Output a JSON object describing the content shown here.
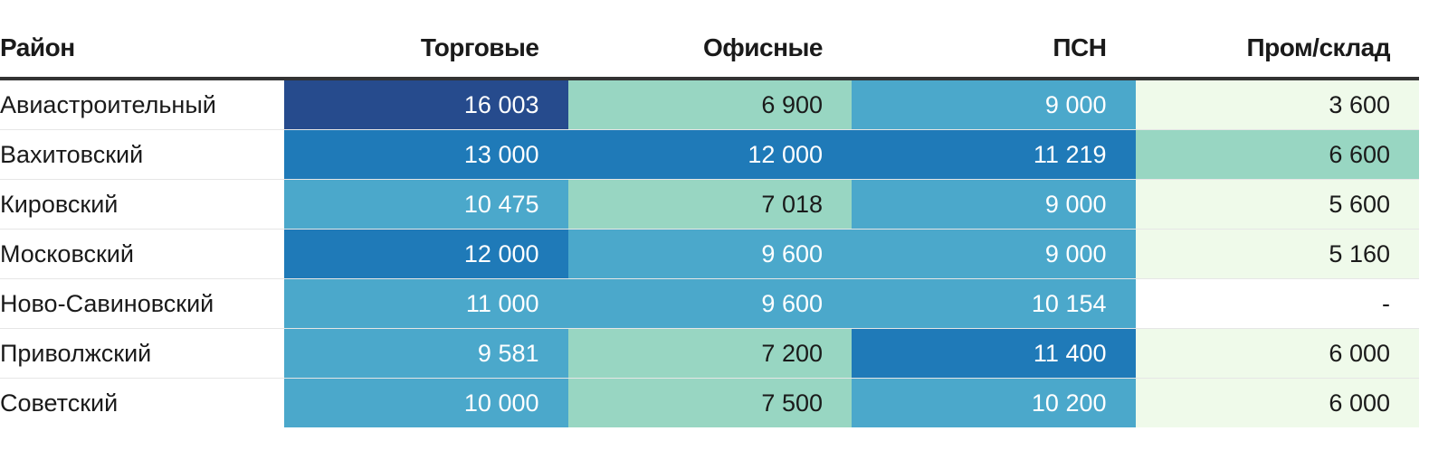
{
  "chart_data": {
    "type": "table",
    "columns": [
      "Район",
      "Торговые",
      "Офисные",
      "ПСН",
      "Пром/склад"
    ],
    "rows": [
      {
        "name": "Авиастроительный",
        "values": [
          "16 003",
          "6 900",
          "9 000",
          "3 600"
        ],
        "levels": [
          4,
          1,
          2,
          0
        ]
      },
      {
        "name": "Вахитовский",
        "values": [
          "13 000",
          "12 000",
          "11 219",
          "6 600"
        ],
        "levels": [
          3,
          3,
          3,
          1
        ]
      },
      {
        "name": "Кировский",
        "values": [
          "10 475",
          "7 018",
          "9 000",
          "5 600"
        ],
        "levels": [
          2,
          1,
          2,
          0
        ]
      },
      {
        "name": "Московский",
        "values": [
          "12 000",
          "9 600",
          "9 000",
          "5 160"
        ],
        "levels": [
          3,
          2,
          2,
          0
        ]
      },
      {
        "name": "Ново-Савиновский",
        "values": [
          "11 000",
          "9 600",
          "10 154",
          "-"
        ],
        "levels": [
          2,
          2,
          2,
          -1
        ]
      },
      {
        "name": "Приволжский",
        "values": [
          "9 581",
          "7 200",
          "11 400",
          "6 000"
        ],
        "levels": [
          2,
          1,
          3,
          0
        ]
      },
      {
        "name": "Советский",
        "values": [
          "10 000",
          "7 500",
          "10 200",
          "6 000"
        ],
        "levels": [
          2,
          1,
          2,
          0
        ]
      }
    ],
    "level_colors": [
      "#effaea",
      "#98d6c2",
      "#4ba8cb",
      "#1f7ab8",
      "#264b8d"
    ],
    "level_text_colors": [
      "#1a1a1a",
      "#1a1a1a",
      "#ffffff",
      "#ffffff",
      "#ffffff"
    ]
  }
}
